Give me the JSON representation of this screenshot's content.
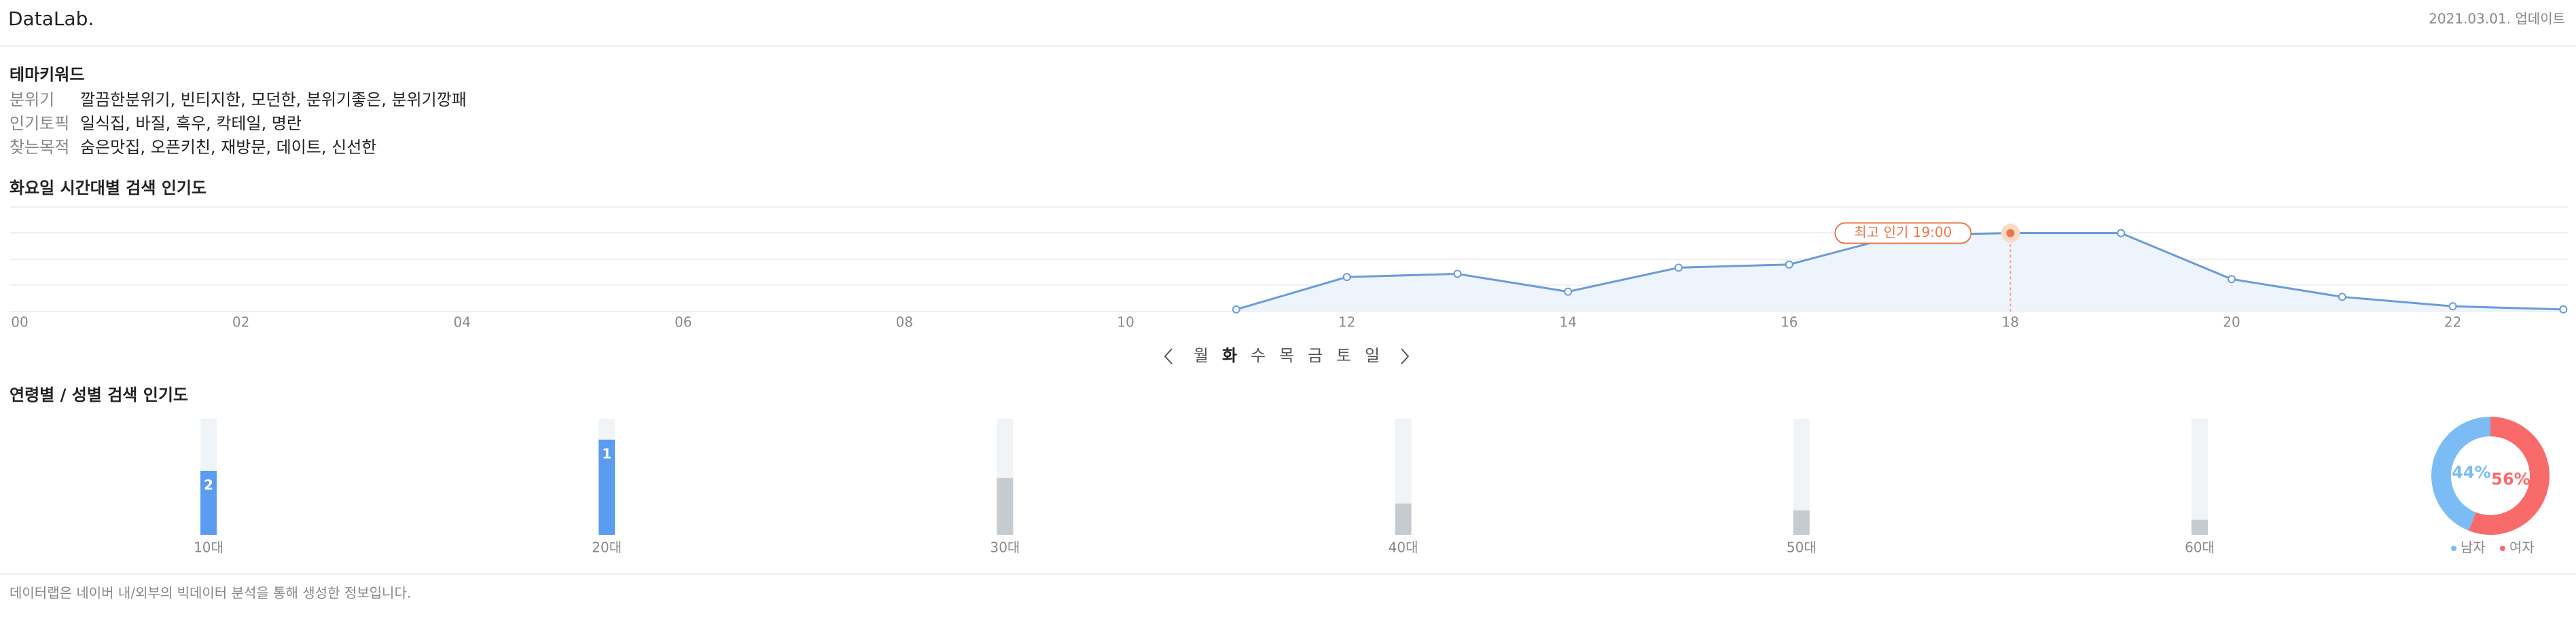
{
  "header": {
    "logo": "DataLab.",
    "updated": "2021.03.01. 업데이트"
  },
  "keywords": {
    "title": "테마키워드",
    "rows": [
      {
        "label": "분위기",
        "text": "깔끔한분위기, 빈티지한, 모던한, 분위기좋은, 분위기깡패"
      },
      {
        "label": "인기토픽",
        "text": "일식집, 바질, 흑우, 칵테일, 명란"
      },
      {
        "label": "찾는목적",
        "text": "숨은맛집, 오픈키친, 재방문, 데이트, 신선한"
      }
    ]
  },
  "chart_data": [
    {
      "type": "line",
      "title": "화요일 시간대별 검색 인기도",
      "categories": [
        "00",
        null,
        "02",
        null,
        "04",
        null,
        "06",
        null,
        "08",
        null,
        "10",
        null,
        "12",
        null,
        "14",
        null,
        "16",
        null,
        "18",
        null,
        "20",
        null,
        "22",
        null
      ],
      "values": [
        null,
        null,
        null,
        null,
        null,
        null,
        null,
        null,
        null,
        null,
        null,
        2,
        33,
        36,
        19,
        42,
        45,
        73,
        75,
        75,
        31,
        14,
        5,
        2
      ],
      "color": "#6b9bd8",
      "ylim": [
        0,
        100
      ],
      "annotation": "최고 인기 19:00",
      "days": [
        "월",
        "화",
        "수",
        "목",
        "금",
        "토",
        "일"
      ],
      "selected_day": "화"
    },
    {
      "type": "bar",
      "title": "연령별 / 성별 검색 인기도",
      "categories": [
        "10대",
        "20대",
        "30대",
        "40대",
        "50대",
        "60대"
      ],
      "values": [
        55,
        82,
        49,
        27,
        21,
        13
      ],
      "ranks": [
        2,
        1,
        null,
        null,
        null,
        null
      ],
      "colors": [
        "#5b9cf0",
        "#5b9cf0",
        "#c5cbcf",
        "#c5cbcf",
        "#c5cbcf",
        "#c5cbcf"
      ],
      "ylim": [
        0,
        100
      ]
    },
    {
      "type": "pie",
      "categories": [
        "남자",
        "여자"
      ],
      "values": [
        44,
        56
      ],
      "value_labels": [
        "44%",
        "56%"
      ],
      "colors": [
        "#7bbcf5",
        "#f96b6b"
      ]
    }
  ],
  "footer": "데이터랩은 네이버 내/외부의 빅데이터 분석을 통해 생성한 정보입니다."
}
